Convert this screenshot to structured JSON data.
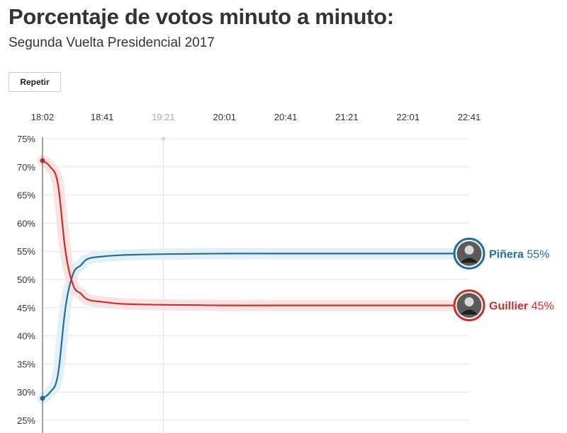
{
  "header": {
    "title": "Porcentaje de votos minuto a minuto:",
    "subtitle": "Segunda Vuelta Presidencial 2017"
  },
  "controls": {
    "replay_label": "Repetir"
  },
  "chart_data": {
    "type": "line",
    "title": "Porcentaje de votos minuto a minuto:",
    "subtitle": "Segunda Vuelta Presidencial 2017",
    "xlabel": "",
    "ylabel": "",
    "x_ticks": [
      "18:02",
      "18:41",
      "19:21",
      "20:01",
      "20:41",
      "21:21",
      "22:01",
      "22:41"
    ],
    "y_ticks": [
      "75%",
      "70%",
      "65%",
      "60%",
      "55%",
      "50%",
      "45%",
      "40%",
      "35%",
      "30%",
      "25%"
    ],
    "ylim": [
      25,
      75
    ],
    "grid": true,
    "highlight_time": "19:21",
    "series": [
      {
        "name": "Piñera",
        "label_value": "55%",
        "color": "#1f6f9f",
        "band_color": "#deedf6",
        "icon": "pinera-photo-icon",
        "x": [
          "18:02",
          "18:07",
          "18:12",
          "18:17",
          "18:22",
          "18:27",
          "18:32",
          "18:42",
          "18:52",
          "19:02",
          "19:21",
          "20:01",
          "20:41",
          "21:21",
          "22:01",
          "22:41"
        ],
        "values": [
          28.9,
          30.0,
          33.0,
          45.0,
          51.0,
          52.5,
          53.7,
          54.1,
          54.3,
          54.4,
          54.5,
          54.6,
          54.6,
          54.6,
          54.6,
          54.6
        ]
      },
      {
        "name": "Guillier",
        "label_value": "45%",
        "color": "#c9302c",
        "band_color": "#f9dede",
        "icon": "guillier-photo-icon",
        "x": [
          "18:02",
          "18:07",
          "18:12",
          "18:17",
          "18:22",
          "18:27",
          "18:32",
          "18:42",
          "18:52",
          "19:02",
          "19:21",
          "20:01",
          "20:41",
          "21:21",
          "22:01",
          "22:41"
        ],
        "values": [
          71.1,
          70.0,
          67.0,
          55.0,
          49.0,
          47.5,
          46.4,
          46.0,
          45.7,
          45.6,
          45.5,
          45.4,
          45.4,
          45.4,
          45.4,
          45.4
        ]
      }
    ]
  }
}
